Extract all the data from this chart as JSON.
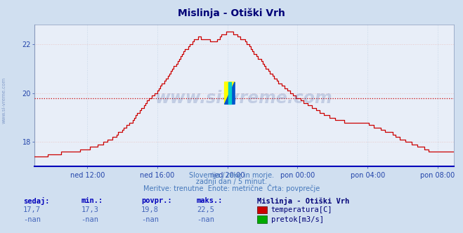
{
  "title": "Mislinja - Otiški Vrh",
  "bg_color": "#d0dff0",
  "plot_bg_color": "#e8eef8",
  "line_color": "#cc0000",
  "avg_value": 19.8,
  "ylim": [
    17.0,
    22.8
  ],
  "yticks": [
    18,
    20,
    22
  ],
  "tick_color": "#2244aa",
  "grid_v_color": "#c8d8e8",
  "grid_h_color": "#e8c8c8",
  "avg_line_color": "#cc0000",
  "xtick_labels": [
    "ned 12:00",
    "ned 16:00",
    "ned 20:00",
    "pon 00:00",
    "pon 04:00",
    "pon 08:00"
  ],
  "footer_lines": [
    "Slovenija / reke in morje.",
    "zadnji dan / 5 minut.",
    "Meritve: trenutne  Enote: metrične  Črta: povprečje"
  ],
  "footer_color": "#4477bb",
  "sedaj": "17,7",
  "min_val": "17,3",
  "povpr": "19,8",
  "maks": "22,5",
  "legend_title": "Mislinja - Otiški Vrh",
  "legend_temp_color": "#cc0000",
  "legend_flow_color": "#00aa00",
  "watermark": "www.si-vreme.com",
  "watermark_color": "#1a3a8a",
  "watermark_alpha": 0.18,
  "n_points": 288,
  "keypoints": [
    [
      0,
      17.35
    ],
    [
      5,
      17.4
    ],
    [
      12,
      17.5
    ],
    [
      18,
      17.55
    ],
    [
      24,
      17.6
    ],
    [
      30,
      17.65
    ],
    [
      36,
      17.7
    ],
    [
      42,
      17.85
    ],
    [
      48,
      18.0
    ],
    [
      54,
      18.2
    ],
    [
      60,
      18.5
    ],
    [
      66,
      18.85
    ],
    [
      72,
      19.3
    ],
    [
      78,
      19.75
    ],
    [
      84,
      20.1
    ],
    [
      90,
      20.6
    ],
    [
      96,
      21.15
    ],
    [
      102,
      21.7
    ],
    [
      108,
      22.1
    ],
    [
      112,
      22.3
    ],
    [
      116,
      22.2
    ],
    [
      120,
      22.15
    ],
    [
      124,
      22.1
    ],
    [
      128,
      22.35
    ],
    [
      132,
      22.5
    ],
    [
      136,
      22.45
    ],
    [
      140,
      22.3
    ],
    [
      144,
      22.1
    ],
    [
      148,
      21.8
    ],
    [
      152,
      21.5
    ],
    [
      156,
      21.2
    ],
    [
      160,
      20.9
    ],
    [
      164,
      20.6
    ],
    [
      168,
      20.4
    ],
    [
      172,
      20.2
    ],
    [
      176,
      20.0
    ],
    [
      180,
      19.8
    ],
    [
      184,
      19.65
    ],
    [
      188,
      19.5
    ],
    [
      192,
      19.35
    ],
    [
      196,
      19.2
    ],
    [
      200,
      19.1
    ],
    [
      204,
      19.0
    ],
    [
      208,
      18.9
    ],
    [
      212,
      18.85
    ],
    [
      216,
      18.8
    ],
    [
      220,
      18.8
    ],
    [
      224,
      18.75
    ],
    [
      228,
      18.75
    ],
    [
      232,
      18.65
    ],
    [
      236,
      18.55
    ],
    [
      240,
      18.45
    ],
    [
      244,
      18.35
    ],
    [
      248,
      18.2
    ],
    [
      252,
      18.1
    ],
    [
      256,
      18.0
    ],
    [
      260,
      17.9
    ],
    [
      264,
      17.8
    ],
    [
      268,
      17.7
    ],
    [
      272,
      17.6
    ],
    [
      276,
      17.55
    ],
    [
      280,
      17.55
    ],
    [
      284,
      17.6
    ],
    [
      287,
      17.65
    ]
  ]
}
